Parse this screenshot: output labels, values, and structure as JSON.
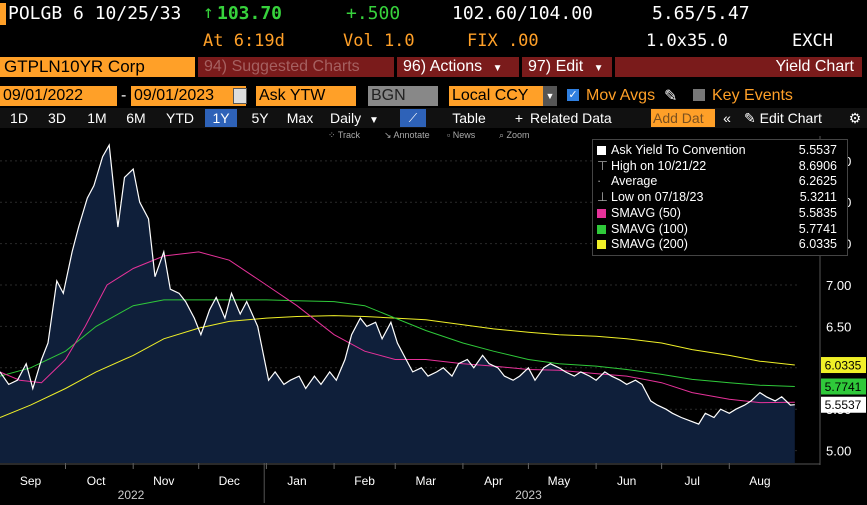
{
  "quote": {
    "ticker": "POLGB 6 10/25/33",
    "last": "103.70",
    "change": "+.500",
    "bid_ask": "102.60/104.00",
    "yields": "5.65/5.47",
    "time": "At 6:19d",
    "vol": "Vol 1.0",
    "fix": "FIX .00",
    "size": "1.0x35.0",
    "exch": "EXCH"
  },
  "toolbar": {
    "security": "GTPLN10YR Corp",
    "suggested": "94) Suggested Charts",
    "actions": "96) Actions",
    "edit": "97) Edit",
    "chart_title": "Yield Chart"
  },
  "controls": {
    "start_date": "09/01/2022",
    "end_date": "09/01/2023",
    "field": "Ask YTW",
    "source": "BGN",
    "currency": "Local CCY",
    "mov_avgs": "Mov Avgs",
    "key_events": "Key Events"
  },
  "periods": [
    "1D",
    "3D",
    "1M",
    "6M",
    "YTD",
    "1Y",
    "5Y",
    "Max"
  ],
  "range_bar": {
    "daily": "Daily",
    "table": "Table",
    "related": "Related Data",
    "add_data": "Add Dat",
    "edit_chart": "Edit Chart"
  },
  "chart_tools": [
    "Track",
    "Annotate",
    "News",
    "Zoom"
  ],
  "legend": [
    {
      "label": "Ask Yield To Convention",
      "value": "5.5537",
      "color": "#ffffff",
      "kind": "box"
    },
    {
      "label": "High on 10/21/22",
      "value": "8.6906",
      "color": "#aaaaaa",
      "kind": "high"
    },
    {
      "label": "Average",
      "value": "6.2625",
      "color": "#aaaaaa",
      "kind": "avg"
    },
    {
      "label": "Low on 07/18/23",
      "value": "5.3211",
      "color": "#aaaaaa",
      "kind": "low"
    },
    {
      "label": "SMAVG (50)",
      "value": "5.5835",
      "color": "#e6329a",
      "kind": "box"
    },
    {
      "label": "SMAVG (100)",
      "value": "5.7741",
      "color": "#2fc93a",
      "kind": "box"
    },
    {
      "label": "SMAVG (200)",
      "value": "6.0335",
      "color": "#f0f028",
      "kind": "box"
    }
  ],
  "chart_data": {
    "type": "line",
    "title": "",
    "xlabel": "",
    "ylabel": "",
    "ylim": [
      4.85,
      8.8
    ],
    "y_ticks": [
      "8.50",
      "8.00",
      "7.50",
      "7.00",
      "6.50",
      "6.00",
      "5.50",
      "5.00"
    ],
    "x_months": [
      "Sep",
      "Oct",
      "Nov",
      "Dec",
      "Jan",
      "Feb",
      "Mar",
      "Apr",
      "May",
      "Jun",
      "Jul",
      "Aug"
    ],
    "x_years": [
      "2022",
      "2023"
    ],
    "x_range": [
      "2022-09-01",
      "2023-09-01"
    ],
    "grid": true,
    "legend_position": "top-right",
    "last_value_labels": [
      {
        "value": "6.0335",
        "color": "#f0f028"
      },
      {
        "value": "5.7741",
        "color": "#2fc93a"
      },
      {
        "value": "5.5537",
        "color": "#ffffff"
      }
    ],
    "series": [
      {
        "name": "Ask Yield To Convention",
        "color": "#ffffff",
        "fill": "#0f1f3a",
        "points": [
          [
            "2022-09-01",
            5.95
          ],
          [
            "2022-09-05",
            5.8
          ],
          [
            "2022-09-09",
            5.85
          ],
          [
            "2022-09-13",
            6.05
          ],
          [
            "2022-09-16",
            5.75
          ],
          [
            "2022-09-20",
            6.1
          ],
          [
            "2022-09-23",
            6.3
          ],
          [
            "2022-09-27",
            7.05
          ],
          [
            "2022-09-30",
            6.9
          ],
          [
            "2022-10-04",
            7.4
          ],
          [
            "2022-10-07",
            7.7
          ],
          [
            "2022-10-11",
            8.05
          ],
          [
            "2022-10-14",
            8.2
          ],
          [
            "2022-10-18",
            8.55
          ],
          [
            "2022-10-21",
            8.69
          ],
          [
            "2022-10-25",
            7.7
          ],
          [
            "2022-10-28",
            8.3
          ],
          [
            "2022-11-01",
            8.4
          ],
          [
            "2022-11-04",
            8.0
          ],
          [
            "2022-11-08",
            7.8
          ],
          [
            "2022-11-11",
            7.1
          ],
          [
            "2022-11-15",
            7.4
          ],
          [
            "2022-11-18",
            6.95
          ],
          [
            "2022-11-22",
            6.9
          ],
          [
            "2022-11-25",
            6.8
          ],
          [
            "2022-11-29",
            6.6
          ],
          [
            "2022-12-02",
            6.4
          ],
          [
            "2022-12-06",
            6.7
          ],
          [
            "2022-12-09",
            6.85
          ],
          [
            "2022-12-13",
            6.6
          ],
          [
            "2022-12-16",
            6.9
          ],
          [
            "2022-12-20",
            6.65
          ],
          [
            "2022-12-23",
            6.8
          ],
          [
            "2022-12-28",
            6.5
          ],
          [
            "2023-01-02",
            5.85
          ],
          [
            "2023-01-05",
            5.95
          ],
          [
            "2023-01-09",
            5.8
          ],
          [
            "2023-01-12",
            5.85
          ],
          [
            "2023-01-16",
            5.9
          ],
          [
            "2023-01-19",
            5.75
          ],
          [
            "2023-01-23",
            5.9
          ],
          [
            "2023-01-26",
            5.8
          ],
          [
            "2023-01-30",
            5.95
          ],
          [
            "2023-02-02",
            5.85
          ],
          [
            "2023-02-06",
            6.1
          ],
          [
            "2023-02-09",
            6.4
          ],
          [
            "2023-02-13",
            6.6
          ],
          [
            "2023-02-16",
            6.5
          ],
          [
            "2023-02-20",
            6.55
          ],
          [
            "2023-02-23",
            6.35
          ],
          [
            "2023-02-27",
            6.55
          ],
          [
            "2023-03-02",
            6.3
          ],
          [
            "2023-03-06",
            6.1
          ],
          [
            "2023-03-09",
            5.95
          ],
          [
            "2023-03-13",
            6.0
          ],
          [
            "2023-03-16",
            5.9
          ],
          [
            "2023-03-20",
            5.95
          ],
          [
            "2023-03-23",
            6.0
          ],
          [
            "2023-03-27",
            5.9
          ],
          [
            "2023-03-30",
            6.05
          ],
          [
            "2023-04-03",
            6.1
          ],
          [
            "2023-04-06",
            6.0
          ],
          [
            "2023-04-10",
            6.15
          ],
          [
            "2023-04-13",
            6.05
          ],
          [
            "2023-04-17",
            6.0
          ],
          [
            "2023-04-20",
            5.9
          ],
          [
            "2023-04-24",
            5.85
          ],
          [
            "2023-04-27",
            5.9
          ],
          [
            "2023-05-01",
            6.0
          ],
          [
            "2023-05-04",
            5.85
          ],
          [
            "2023-05-08",
            6.0
          ],
          [
            "2023-05-11",
            6.05
          ],
          [
            "2023-05-15",
            6.0
          ],
          [
            "2023-05-18",
            5.95
          ],
          [
            "2023-05-22",
            5.9
          ],
          [
            "2023-05-25",
            5.95
          ],
          [
            "2023-05-29",
            5.9
          ],
          [
            "2023-06-01",
            5.85
          ],
          [
            "2023-06-05",
            5.95
          ],
          [
            "2023-06-08",
            5.9
          ],
          [
            "2023-06-12",
            5.85
          ],
          [
            "2023-06-15",
            5.8
          ],
          [
            "2023-06-19",
            5.85
          ],
          [
            "2023-06-22",
            5.8
          ],
          [
            "2023-06-26",
            5.6
          ],
          [
            "2023-06-29",
            5.55
          ],
          [
            "2023-07-03",
            5.5
          ],
          [
            "2023-07-06",
            5.45
          ],
          [
            "2023-07-10",
            5.4
          ],
          [
            "2023-07-14",
            5.36
          ],
          [
            "2023-07-18",
            5.32
          ],
          [
            "2023-07-21",
            5.45
          ],
          [
            "2023-07-25",
            5.4
          ],
          [
            "2023-07-28",
            5.5
          ],
          [
            "2023-08-01",
            5.45
          ],
          [
            "2023-08-04",
            5.5
          ],
          [
            "2023-08-08",
            5.55
          ],
          [
            "2023-08-11",
            5.6
          ],
          [
            "2023-08-15",
            5.7
          ],
          [
            "2023-08-18",
            5.65
          ],
          [
            "2023-08-22",
            5.6
          ],
          [
            "2023-08-25",
            5.65
          ],
          [
            "2023-08-29",
            5.55
          ],
          [
            "2023-08-31",
            5.5537
          ]
        ]
      },
      {
        "name": "SMAVG (50)",
        "color": "#e6329a",
        "points": [
          [
            "2022-09-01",
            5.95
          ],
          [
            "2022-09-10",
            5.85
          ],
          [
            "2022-09-20",
            5.82
          ],
          [
            "2022-10-01",
            6.1
          ],
          [
            "2022-10-10",
            6.5
          ],
          [
            "2022-10-20",
            7.0
          ],
          [
            "2022-11-01",
            7.2
          ],
          [
            "2022-11-15",
            7.35
          ],
          [
            "2022-12-01",
            7.4
          ],
          [
            "2022-12-15",
            7.3
          ],
          [
            "2023-01-01",
            7.0
          ],
          [
            "2023-01-15",
            6.75
          ],
          [
            "2023-02-01",
            6.4
          ],
          [
            "2023-02-15",
            6.2
          ],
          [
            "2023-03-01",
            6.1
          ],
          [
            "2023-03-15",
            6.1
          ],
          [
            "2023-04-01",
            6.05
          ],
          [
            "2023-04-15",
            6.02
          ],
          [
            "2023-05-01",
            5.98
          ],
          [
            "2023-05-15",
            5.97
          ],
          [
            "2023-06-01",
            5.93
          ],
          [
            "2023-06-15",
            5.9
          ],
          [
            "2023-07-01",
            5.82
          ],
          [
            "2023-07-15",
            5.7
          ],
          [
            "2023-08-01",
            5.62
          ],
          [
            "2023-08-15",
            5.58
          ],
          [
            "2023-08-31",
            5.5835
          ]
        ]
      },
      {
        "name": "SMAVG (100)",
        "color": "#2fc93a",
        "points": [
          [
            "2022-09-01",
            5.9
          ],
          [
            "2022-09-15",
            6.0
          ],
          [
            "2022-10-01",
            6.2
          ],
          [
            "2022-10-15",
            6.5
          ],
          [
            "2022-11-01",
            6.75
          ],
          [
            "2022-11-15",
            6.82
          ],
          [
            "2022-12-01",
            6.82
          ],
          [
            "2022-12-15",
            6.82
          ],
          [
            "2023-01-01",
            6.82
          ],
          [
            "2023-01-15",
            6.81
          ],
          [
            "2023-02-01",
            6.8
          ],
          [
            "2023-02-15",
            6.75
          ],
          [
            "2023-03-01",
            6.6
          ],
          [
            "2023-03-15",
            6.45
          ],
          [
            "2023-04-01",
            6.3
          ],
          [
            "2023-04-15",
            6.2
          ],
          [
            "2023-05-01",
            6.1
          ],
          [
            "2023-05-15",
            6.05
          ],
          [
            "2023-06-01",
            6.02
          ],
          [
            "2023-06-15",
            5.98
          ],
          [
            "2023-07-01",
            5.92
          ],
          [
            "2023-07-15",
            5.86
          ],
          [
            "2023-08-01",
            5.82
          ],
          [
            "2023-08-15",
            5.79
          ],
          [
            "2023-08-31",
            5.7741
          ]
        ]
      },
      {
        "name": "SMAVG (200)",
        "color": "#f0f028",
        "points": [
          [
            "2022-09-01",
            5.4
          ],
          [
            "2022-09-15",
            5.55
          ],
          [
            "2022-10-01",
            5.75
          ],
          [
            "2022-10-15",
            5.95
          ],
          [
            "2022-11-01",
            6.15
          ],
          [
            "2022-11-15",
            6.35
          ],
          [
            "2022-12-01",
            6.48
          ],
          [
            "2022-12-15",
            6.56
          ],
          [
            "2023-01-01",
            6.6
          ],
          [
            "2023-01-15",
            6.62
          ],
          [
            "2023-02-01",
            6.63
          ],
          [
            "2023-02-15",
            6.62
          ],
          [
            "2023-03-01",
            6.6
          ],
          [
            "2023-03-15",
            6.58
          ],
          [
            "2023-04-01",
            6.52
          ],
          [
            "2023-04-15",
            6.47
          ],
          [
            "2023-05-01",
            6.43
          ],
          [
            "2023-05-15",
            6.4
          ],
          [
            "2023-06-01",
            6.38
          ],
          [
            "2023-06-15",
            6.35
          ],
          [
            "2023-07-01",
            6.3
          ],
          [
            "2023-07-15",
            6.22
          ],
          [
            "2023-08-01",
            6.15
          ],
          [
            "2023-08-15",
            6.08
          ],
          [
            "2023-08-31",
            6.0335
          ]
        ]
      }
    ]
  }
}
